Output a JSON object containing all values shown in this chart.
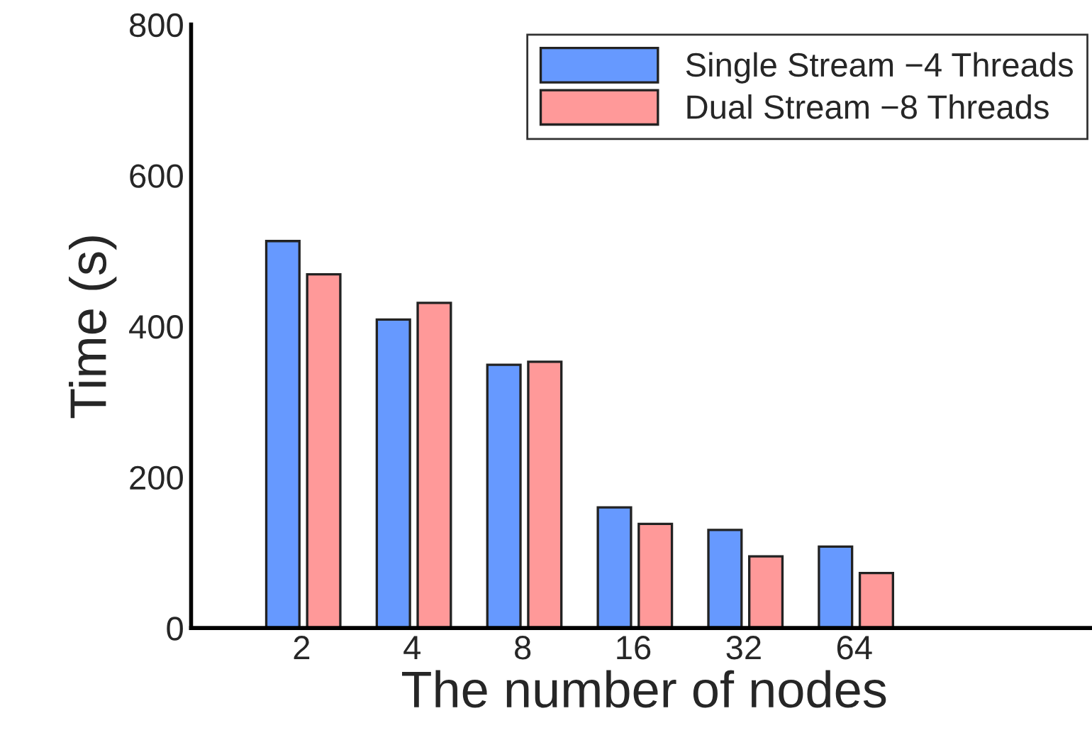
{
  "chart_data": {
    "type": "bar",
    "xlabel": "The number of nodes",
    "ylabel": "Time (s)",
    "categories": [
      "2",
      "4",
      "8",
      "16",
      "32",
      "64"
    ],
    "series": [
      {
        "name": "Single Stream −4 Threads",
        "color": "#6699ff",
        "values": [
          513,
          409,
          349,
          160,
          130,
          108
        ]
      },
      {
        "name": "Dual Stream −8 Threads",
        "color": "#ff9999",
        "values": [
          469,
          431,
          353,
          138,
          95,
          73
        ]
      }
    ],
    "ylim": [
      0,
      800
    ],
    "yticks": [
      0,
      200,
      400,
      600,
      800
    ],
    "grid": false,
    "legend": "top right"
  }
}
